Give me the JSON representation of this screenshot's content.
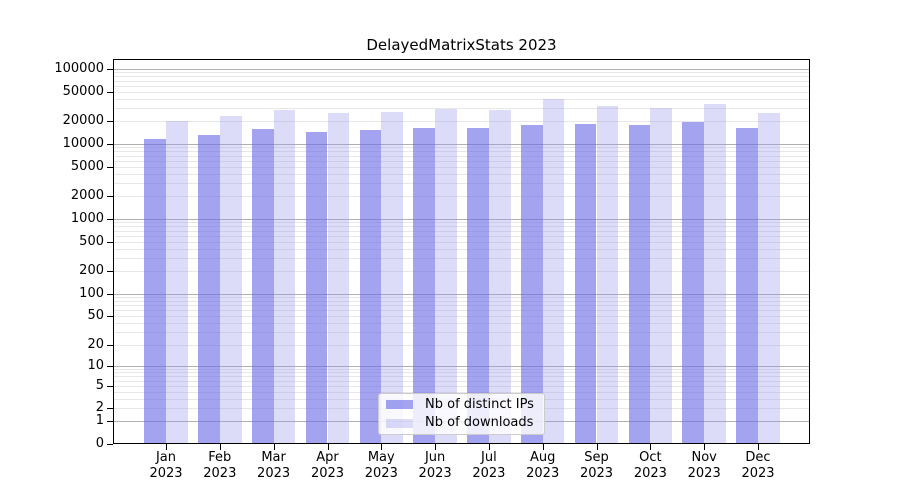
{
  "title": "DelayedMatrixStats 2023",
  "chart_data": {
    "type": "bar",
    "title": "DelayedMatrixStats 2023",
    "categories": [
      "Jan 2023",
      "Feb 2023",
      "Mar 2023",
      "Apr 2023",
      "May 2023",
      "Jun 2023",
      "Jul 2023",
      "Aug 2023",
      "Sep 2023",
      "Oct 2023",
      "Nov 2023",
      "Dec 2023"
    ],
    "series": [
      {
        "name": "Nb of distinct IPs",
        "color_hex": "#A3A3F0",
        "rgba": "rgba(107,107,231,0.62)",
        "values": [
          11600,
          13300,
          15700,
          14600,
          15200,
          16200,
          16500,
          18200,
          18300,
          17900,
          19400,
          16500
        ]
      },
      {
        "name": "Nb of downloads",
        "color_hex": "#DCDCF9",
        "rgba": "rgba(155,155,238,0.35)",
        "values": [
          20400,
          23800,
          28400,
          25600,
          26400,
          29000,
          28800,
          39400,
          32400,
          29900,
          33800,
          25600
        ]
      }
    ],
    "y_scale": "log1p",
    "y_ticks": [
      0,
      1,
      2,
      5,
      10,
      20,
      50,
      100,
      200,
      500,
      1000,
      2000,
      5000,
      10000,
      20000,
      50000,
      100000
    ],
    "ylim": [
      0,
      100000
    ],
    "grid": true,
    "legend_position": "bottom-center",
    "axis_color": "#000000",
    "grid_major_color": "#b0b0b0",
    "grid_minor_color": "#e7e7e7"
  }
}
